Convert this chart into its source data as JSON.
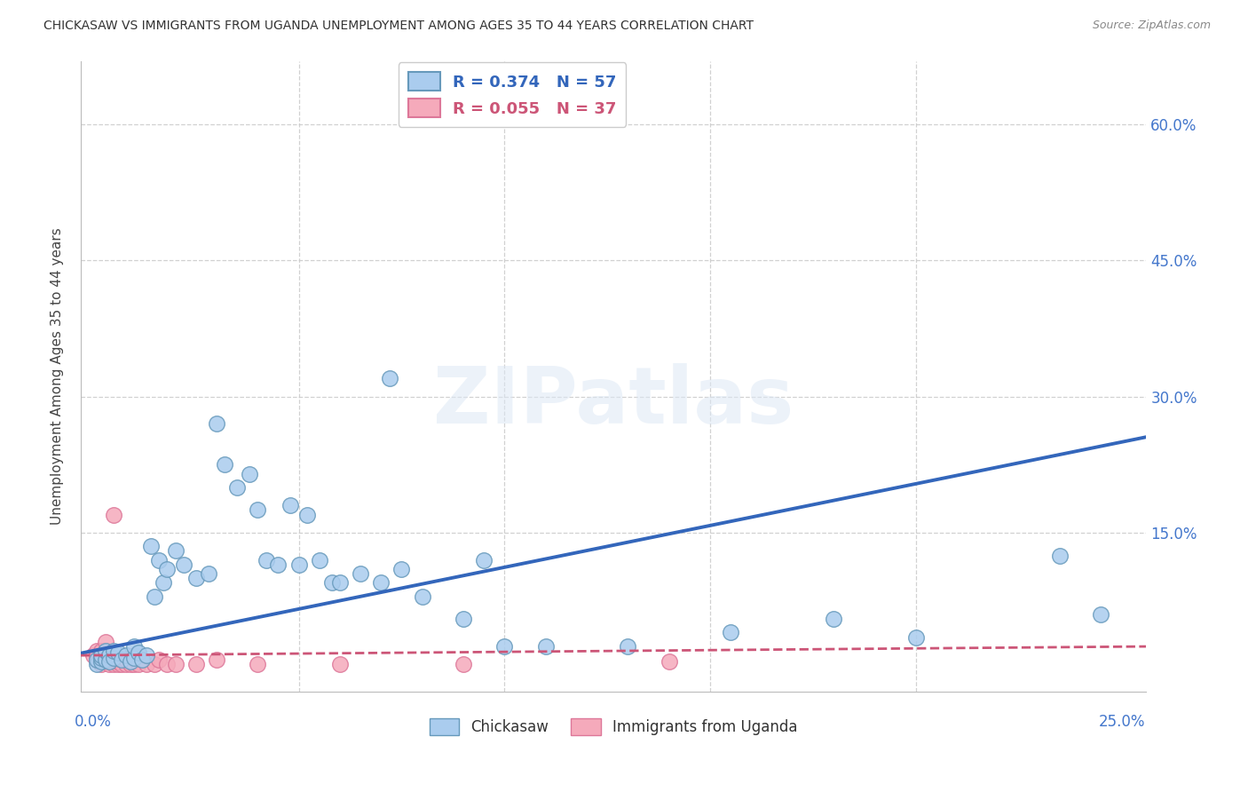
{
  "title": "CHICKASAW VS IMMIGRANTS FROM UGANDA UNEMPLOYMENT AMONG AGES 35 TO 44 YEARS CORRELATION CHART",
  "source": "Source: ZipAtlas.com",
  "ylabel": "Unemployment Among Ages 35 to 44 years",
  "right_ytick_labels": [
    "15.0%",
    "30.0%",
    "45.0%",
    "60.0%"
  ],
  "right_ytick_values": [
    0.15,
    0.3,
    0.45,
    0.6
  ],
  "xlim_min": -0.003,
  "xlim_max": 0.256,
  "ylim_min": -0.025,
  "ylim_max": 0.67,
  "chickasaw_color": "#aaccee",
  "chickasaw_edge_color": "#6699bb",
  "uganda_color": "#f5aabb",
  "uganda_edge_color": "#dd7799",
  "trend_blue_color": "#3366bb",
  "trend_pink_color": "#cc5577",
  "legend_label_blue": "Chickasaw",
  "legend_label_pink": "Immigrants from Uganda",
  "watermark": "ZIPatlas",
  "bg_color": "#ffffff",
  "grid_color": "#cccccc",
  "axis_label_color": "#4477cc",
  "title_color": "#333333",
  "chickasaw_x": [
    0.001,
    0.001,
    0.002,
    0.002,
    0.002,
    0.003,
    0.003,
    0.004,
    0.004,
    0.005,
    0.005,
    0.006,
    0.007,
    0.008,
    0.009,
    0.01,
    0.01,
    0.011,
    0.012,
    0.013,
    0.014,
    0.015,
    0.016,
    0.017,
    0.018,
    0.02,
    0.022,
    0.025,
    0.028,
    0.03,
    0.032,
    0.035,
    0.038,
    0.04,
    0.042,
    0.045,
    0.048,
    0.05,
    0.052,
    0.055,
    0.058,
    0.06,
    0.065,
    0.07,
    0.072,
    0.075,
    0.08,
    0.09,
    0.095,
    0.1,
    0.11,
    0.13,
    0.155,
    0.18,
    0.2,
    0.235,
    0.245
  ],
  "chickasaw_y": [
    0.005,
    0.01,
    0.008,
    0.012,
    0.015,
    0.01,
    0.02,
    0.015,
    0.008,
    0.012,
    0.02,
    0.018,
    0.01,
    0.015,
    0.008,
    0.012,
    0.025,
    0.018,
    0.01,
    0.015,
    0.135,
    0.08,
    0.12,
    0.095,
    0.11,
    0.13,
    0.115,
    0.1,
    0.105,
    0.27,
    0.225,
    0.2,
    0.215,
    0.175,
    0.12,
    0.115,
    0.18,
    0.115,
    0.17,
    0.12,
    0.095,
    0.095,
    0.105,
    0.095,
    0.32,
    0.11,
    0.08,
    0.055,
    0.12,
    0.025,
    0.025,
    0.025,
    0.04,
    0.055,
    0.035,
    0.125,
    0.06
  ],
  "uganda_x": [
    0.0,
    0.001,
    0.001,
    0.001,
    0.002,
    0.002,
    0.002,
    0.003,
    0.003,
    0.003,
    0.004,
    0.004,
    0.005,
    0.005,
    0.005,
    0.006,
    0.006,
    0.007,
    0.007,
    0.008,
    0.008,
    0.009,
    0.01,
    0.01,
    0.011,
    0.012,
    0.013,
    0.015,
    0.016,
    0.018,
    0.02,
    0.025,
    0.03,
    0.04,
    0.06,
    0.09,
    0.14
  ],
  "uganda_y": [
    0.015,
    0.01,
    0.015,
    0.02,
    0.005,
    0.01,
    0.02,
    0.008,
    0.012,
    0.03,
    0.005,
    0.015,
    0.005,
    0.01,
    0.17,
    0.005,
    0.008,
    0.005,
    0.01,
    0.005,
    0.01,
    0.005,
    0.005,
    0.015,
    0.005,
    0.01,
    0.005,
    0.005,
    0.01,
    0.005,
    0.005,
    0.005,
    0.01,
    0.005,
    0.005,
    0.005,
    0.008
  ]
}
